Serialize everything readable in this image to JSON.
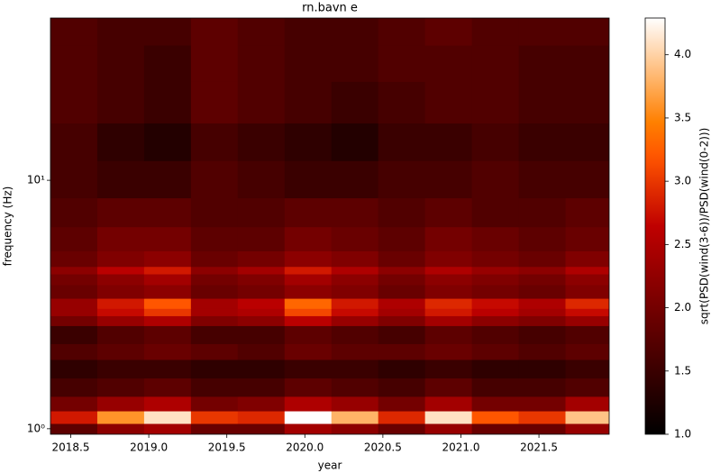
{
  "chart_data": {
    "type": "heatmap",
    "title": "rn.bavn e",
    "x_label": "year",
    "y_label": "frequency (Hz)",
    "colorbar_label": "sqrt(PSD(wind(3-6))/PSD(wind(0-2)))",
    "colormap": "gist_heat",
    "y_scale": "log",
    "xlim": [
      2018.37,
      2021.95
    ],
    "ylim": [
      0.95,
      45
    ],
    "clim": [
      1.0,
      4.29
    ],
    "xticks": [
      2018.5,
      {
        "value": 2019,
        "label": "2019.0"
      },
      2019.5,
      {
        "value": 2020,
        "label": "2020.0"
      },
      2020.5,
      {
        "value": 2021,
        "label": "2021.0"
      },
      2021.5
    ],
    "yticks": [
      {
        "value": 1,
        "label": "10⁰"
      },
      {
        "value": 10,
        "label": "10¹"
      }
    ],
    "cticks": [
      {
        "value": 1,
        "label": "1.0"
      },
      1.5,
      {
        "value": 2,
        "label": "2.0"
      },
      2.5,
      {
        "value": 3,
        "label": "3.0"
      },
      3.5,
      {
        "value": 4,
        "label": "4.0"
      }
    ],
    "x_bins": [
      2018.37,
      2018.67,
      2018.97,
      2019.27,
      2019.57,
      2019.87,
      2020.17,
      2020.47,
      2020.77,
      2021.07,
      2021.37,
      2021.67,
      2021.95
    ],
    "y_bins": [
      0.95,
      1.05,
      1.18,
      1.35,
      1.6,
      1.9,
      2.2,
      2.6,
      2.85,
      3.05,
      3.35,
      3.8,
      4.2,
      4.5,
      5.2,
      6.5,
      8.5,
      12,
      17,
      25,
      35,
      45
    ],
    "z": [
      [
        1.8,
        2.2,
        2.4,
        1.9,
        1.9,
        2.4,
        2.2,
        1.9,
        2.3,
        1.9,
        1.9,
        2.3
      ],
      [
        2.8,
        3.6,
        4.1,
        3.0,
        2.9,
        4.3,
        3.8,
        2.9,
        4.1,
        3.2,
        3.0,
        3.9
      ],
      [
        2.0,
        2.3,
        2.5,
        2.0,
        2.1,
        2.5,
        2.3,
        2.0,
        2.4,
        2.0,
        2.0,
        2.4
      ],
      [
        1.6,
        1.7,
        1.8,
        1.6,
        1.6,
        1.8,
        1.7,
        1.6,
        1.8,
        1.6,
        1.6,
        1.7
      ],
      [
        1.4,
        1.5,
        1.5,
        1.4,
        1.4,
        1.5,
        1.5,
        1.4,
        1.5,
        1.4,
        1.4,
        1.5
      ],
      [
        1.7,
        1.8,
        1.9,
        1.8,
        1.7,
        1.9,
        1.8,
        1.8,
        1.9,
        1.8,
        1.7,
        1.8
      ],
      [
        1.5,
        1.7,
        1.8,
        1.6,
        1.6,
        1.8,
        1.7,
        1.6,
        1.8,
        1.7,
        1.6,
        1.7
      ],
      [
        2.0,
        2.3,
        2.5,
        2.1,
        2.2,
        2.6,
        2.3,
        2.1,
        2.4,
        2.2,
        2.1,
        2.3
      ],
      [
        2.3,
        2.7,
        3.0,
        2.4,
        2.5,
        3.1,
        2.7,
        2.4,
        2.8,
        2.6,
        2.4,
        2.7
      ],
      [
        2.3,
        2.8,
        3.2,
        2.4,
        2.6,
        3.3,
        2.8,
        2.5,
        2.9,
        2.7,
        2.5,
        2.9
      ],
      [
        1.9,
        2.1,
        2.2,
        1.9,
        2.0,
        2.2,
        2.1,
        1.9,
        2.1,
        2.0,
        1.9,
        2.1
      ],
      [
        2.0,
        2.2,
        2.4,
        2.0,
        2.1,
        2.4,
        2.2,
        2.0,
        2.2,
        2.1,
        2.0,
        2.2
      ],
      [
        2.2,
        2.6,
        2.8,
        2.2,
        2.4,
        2.8,
        2.5,
        2.2,
        2.5,
        2.3,
        2.2,
        2.5
      ],
      [
        1.9,
        2.1,
        2.2,
        1.9,
        2.0,
        2.2,
        2.1,
        1.9,
        2.1,
        2.0,
        1.9,
        2.1
      ],
      [
        1.8,
        2.0,
        2.0,
        1.8,
        1.8,
        2.0,
        1.9,
        1.8,
        2.0,
        1.9,
        1.8,
        1.9
      ],
      [
        1.7,
        1.8,
        1.8,
        1.7,
        1.7,
        1.8,
        1.8,
        1.7,
        1.8,
        1.7,
        1.7,
        1.8
      ],
      [
        1.6,
        1.5,
        1.5,
        1.7,
        1.6,
        1.5,
        1.5,
        1.6,
        1.6,
        1.7,
        1.6,
        1.6
      ],
      [
        1.6,
        1.4,
        1.3,
        1.6,
        1.5,
        1.4,
        1.3,
        1.5,
        1.5,
        1.6,
        1.5,
        1.5
      ],
      [
        1.7,
        1.6,
        1.5,
        1.8,
        1.7,
        1.6,
        1.5,
        1.6,
        1.7,
        1.7,
        1.6,
        1.6
      ],
      [
        1.7,
        1.6,
        1.5,
        1.8,
        1.7,
        1.6,
        1.6,
        1.7,
        1.7,
        1.7,
        1.6,
        1.6
      ],
      [
        1.7,
        1.6,
        1.6,
        1.8,
        1.7,
        1.6,
        1.6,
        1.7,
        1.8,
        1.7,
        1.7,
        1.7
      ]
    ]
  }
}
